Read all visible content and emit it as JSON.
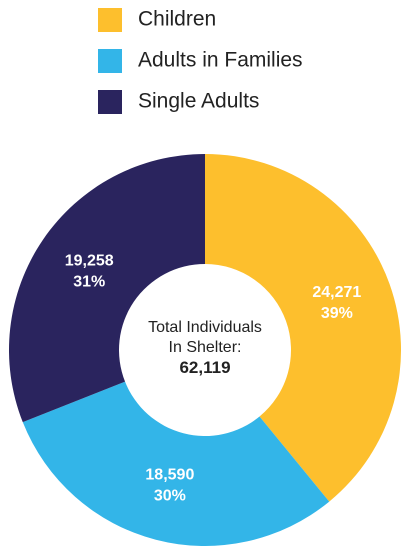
{
  "chart_data": {
    "type": "pie",
    "donut": true,
    "categories": [
      "Children",
      "Adults in Families",
      "Single Adults"
    ],
    "values": [
      24271,
      18590,
      19258
    ],
    "value_labels": [
      "24,271",
      "18,590",
      "19,258"
    ],
    "percentages": [
      39,
      30,
      31
    ],
    "percentage_labels": [
      "39%",
      "30%",
      "31%"
    ],
    "colors": [
      "#fdbf2d",
      "#33b5e8",
      "#2a245e"
    ],
    "center_label": "Total Individuals In Shelter:",
    "total": 62119,
    "total_label": "62,119"
  }
}
